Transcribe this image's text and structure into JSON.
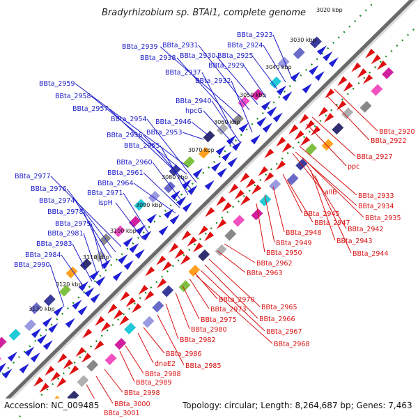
{
  "title": "Bradyrhizobium sp. BTAi1, complete genome",
  "footer": {
    "accession": "Accession: NC_009485",
    "topology": "Topology: circular; Length: 8,264,687 bp; Genes: 7,463"
  },
  "colors": {
    "plus_strand": "#1f1fd6",
    "minus_strand": "#e01010",
    "plus_label": "#1a1ac8",
    "minus_label": "#d81010",
    "backbone": "#777777",
    "ring_dots": "#1e8c1e"
  },
  "kbp_ticks": [
    "3020 kbp",
    "3030 kbp",
    "3040 kbp",
    "3050 kbp",
    "3060 kbp",
    "3070 kbp",
    "3080 kbp",
    "3090 kbp",
    "3100 kbp",
    "3110 kbp",
    "3120 kbp",
    "3130 kbp"
  ],
  "plus_labels": [
    "BBta_2923",
    "BBta_2924",
    "BBta_2925",
    "BBta_2929",
    "BBta_2930",
    "BBta_2931",
    "BBta_2939",
    "BBta_2938",
    "BBta_2937",
    "BBta_2932",
    "BBta_2959",
    "BBta_2958",
    "BBta_2957",
    "BBta_2940",
    "hpcG",
    "BBta_2954",
    "BBta_2946",
    "BBta_2956",
    "BBta_2953",
    "BBta_2955",
    "BBta_2960",
    "BBta_2961",
    "BBta_2964",
    "BBta_2977",
    "BBta_2976",
    "BBta_2971",
    "ispH",
    "BBta_2974",
    "BBta_2978",
    "BBta_2979",
    "BBta_2981",
    "BBta_2983",
    "BBta_2984",
    "BBta_2990"
  ],
  "minus_labels": [
    "BBta_2920",
    "BBta_2922",
    "BBta_2927",
    "ppc",
    "allB",
    "BBta_2933",
    "BBta_2934",
    "BBta_2935",
    "BBta_2945",
    "BBta_2947",
    "BBta_2942",
    "BBta_2948",
    "BBta_2943",
    "BBta_2949",
    "BBta_2944",
    "BBta_2950",
    "BBta_2962",
    "BBta_2963",
    "BBta_2970",
    "BBta_2965",
    "BBta_2973",
    "BBta_2966",
    "BBta_2975",
    "BBta_2967",
    "BBta_2980",
    "BBta_2968",
    "BBta_2982",
    "BBta_2986",
    "dnaE2",
    "BBta_2985",
    "BBta_2988",
    "BBta_2989",
    "BBta_2998",
    "BBta_3000",
    "BBta_3001"
  ]
}
